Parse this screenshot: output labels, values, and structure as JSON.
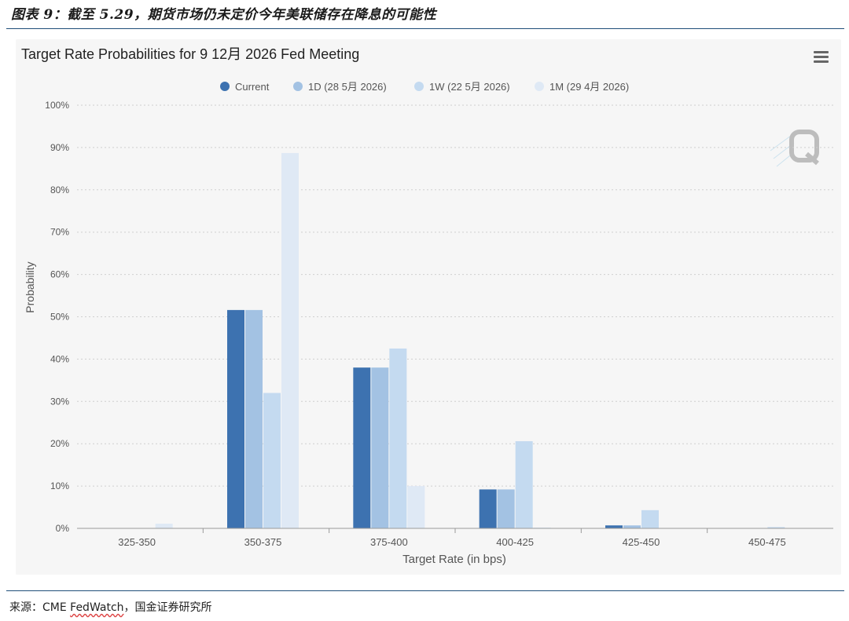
{
  "figure": {
    "caption": "图表 9：截至 5.29，期货市场仍未定价今年美联储存在降息的可能性",
    "source_prefix": "来源：CME ",
    "source_underlined": "FedWatch",
    "source_suffix": "，国金证券研究所"
  },
  "colors": {
    "current": "#3d72b0",
    "d1": "#a3c2e3",
    "w1": "#c4daf0",
    "m1": "#dfe9f5",
    "grid": "#cfcfcf",
    "axis": "#9a9a9a",
    "text": "#555555",
    "title": "#222222"
  },
  "menu_icon": "hamburger-menu-icon",
  "watermark_icon": "q-logo-icon",
  "chart_data": {
    "type": "bar",
    "title": "Target Rate Probabilities for 9 12月 2026 Fed Meeting",
    "xlabel": "Target Rate (in bps)",
    "ylabel": "Probability",
    "ylim": [
      0,
      100
    ],
    "yticks": [
      "0%",
      "10%",
      "20%",
      "30%",
      "40%",
      "50%",
      "60%",
      "70%",
      "80%",
      "90%",
      "100%"
    ],
    "grid": true,
    "legend_position": "top-center",
    "categories": [
      "325-350",
      "350-375",
      "375-400",
      "400-425",
      "425-450",
      "450-475"
    ],
    "series": [
      {
        "name": "Current",
        "color": "#3d72b0",
        "values": [
          0,
          51.6,
          38.0,
          9.2,
          0.7,
          0
        ]
      },
      {
        "name": "1D (28 5月 2026)",
        "color": "#a3c2e3",
        "values": [
          0,
          51.6,
          38.0,
          9.2,
          0.7,
          0
        ]
      },
      {
        "name": "1W (22 5月 2026)",
        "color": "#c4daf0",
        "values": [
          0,
          32.0,
          42.5,
          20.6,
          4.3,
          0.3
        ]
      },
      {
        "name": "1M (29 4月 2026)",
        "color": "#dfe9f5",
        "values": [
          1.1,
          88.7,
          10.0,
          0.2,
          0,
          0
        ]
      }
    ]
  }
}
